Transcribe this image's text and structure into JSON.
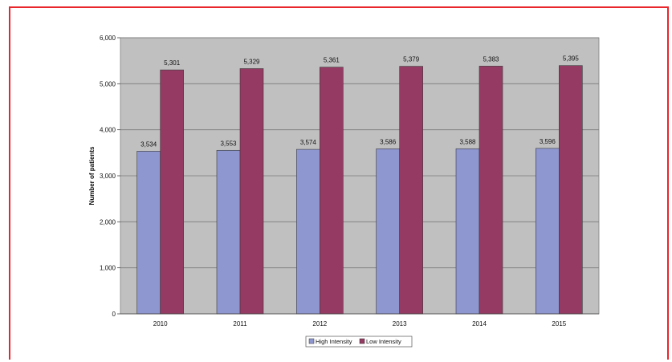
{
  "chart_data": {
    "type": "bar",
    "categories": [
      "2010",
      "2011",
      "2012",
      "2013",
      "2014",
      "2015"
    ],
    "series": [
      {
        "name": "High Intensity",
        "values": [
          3534,
          3553,
          3574,
          3586,
          3588,
          3596
        ],
        "labels": [
          "3,534",
          "3,553",
          "3,574",
          "3,586",
          "3,588",
          "3,596"
        ],
        "color": "#8f97d1"
      },
      {
        "name": "Low Intensity",
        "values": [
          5301,
          5329,
          5361,
          5379,
          5383,
          5395
        ],
        "labels": [
          "5,301",
          "5,329",
          "5,361",
          "5,379",
          "5,383",
          "5,395"
        ],
        "color": "#953a63"
      }
    ],
    "ylabel": "Number of patients",
    "ylim": [
      0,
      6000
    ],
    "yticks": [
      0,
      1000,
      2000,
      3000,
      4000,
      5000,
      6000
    ],
    "ytick_labels": [
      "0",
      "1,000",
      "2,000",
      "3,000",
      "4,000",
      "5,000",
      "6,000"
    ],
    "grid": true,
    "plot_background": "#c0c0c0",
    "legend_position": "bottom"
  }
}
